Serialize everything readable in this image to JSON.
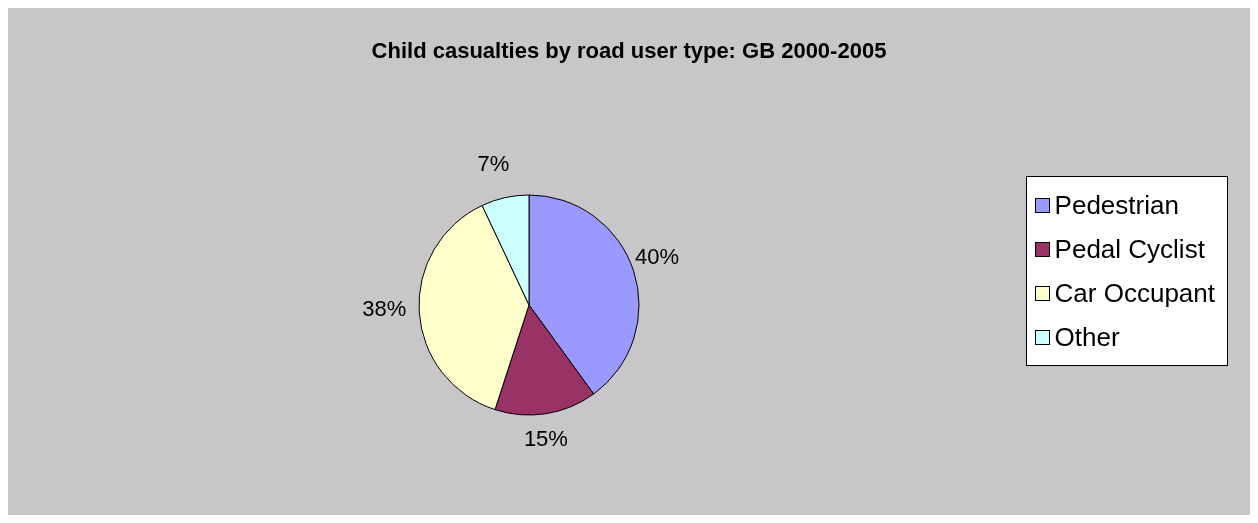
{
  "chart_data": {
    "type": "pie",
    "title": "Child casualties by road user type: GB 2000-2005",
    "categories": [
      "Pedestrian",
      "Pedal Cyclist",
      "Car Occupant",
      "Other"
    ],
    "values": [
      40,
      15,
      38,
      7
    ],
    "value_labels": [
      "40%",
      "15%",
      "38%",
      "7%"
    ],
    "colors": [
      "#9999ff",
      "#993366",
      "#ffffcc",
      "#ccffff"
    ],
    "legend": "right"
  }
}
